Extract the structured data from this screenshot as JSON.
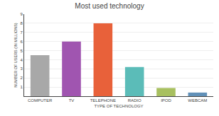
{
  "chart_data": {
    "type": "bar",
    "title": "Most used technology",
    "xlabel": "TYPE OF TECHNOLOGY",
    "ylabel": "NUMBER OF USERS (IN MILLIONS)",
    "categories": [
      "COMPUTER",
      "TV",
      "TELEPHONE",
      "RADIO",
      "IPOD",
      "WEBCAM"
    ],
    "values": [
      4.5,
      6.0,
      8.0,
      3.2,
      0.9,
      0.4
    ],
    "colors": [
      "#a8a8a8",
      "#a055b0",
      "#e8613a",
      "#5bbcb8",
      "#a8c060",
      "#6090b8"
    ],
    "ylim": [
      0,
      9
    ],
    "yticks": [
      1,
      2,
      3,
      4,
      5,
      6,
      7,
      8,
      9
    ],
    "grid": true
  }
}
